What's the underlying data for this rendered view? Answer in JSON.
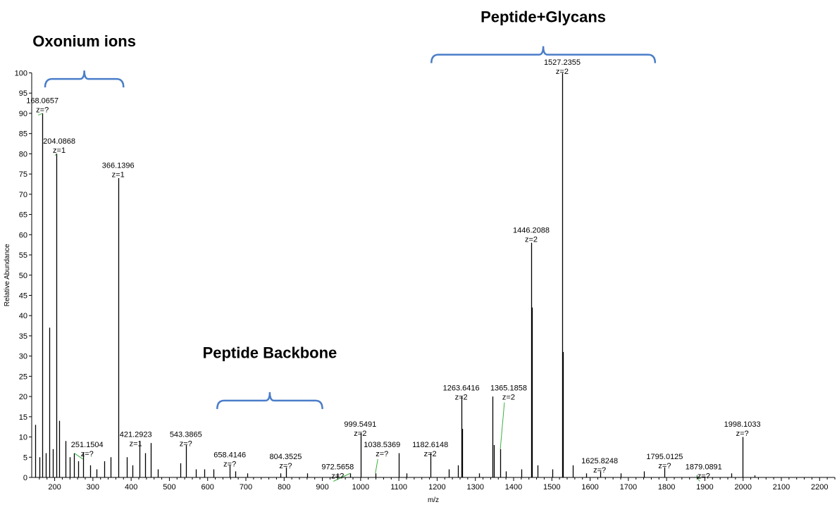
{
  "chart_data": {
    "type": "bar",
    "title": "",
    "xlabel": "m/z",
    "ylabel": "Relative Abundance",
    "xlim": [
      140,
      2240
    ],
    "ylim": [
      0,
      100
    ],
    "x_ticks": [
      200,
      300,
      400,
      500,
      600,
      700,
      800,
      900,
      1000,
      1100,
      1200,
      1300,
      1400,
      1500,
      1600,
      1700,
      1800,
      1900,
      2000,
      2100,
      2200
    ],
    "y_ticks": [
      0,
      5,
      10,
      15,
      20,
      25,
      30,
      35,
      40,
      45,
      50,
      55,
      60,
      65,
      70,
      75,
      80,
      85,
      90,
      95,
      100
    ],
    "peaks": [
      {
        "mz": 168.0657,
        "intensity": 90
      },
      {
        "mz": 186.0762,
        "intensity": 37
      },
      {
        "mz": 204.0868,
        "intensity": 80
      },
      {
        "mz": 366.1396,
        "intensity": 74
      },
      {
        "mz": 1446.2088,
        "intensity": 58
      },
      {
        "mz": 1527.2355,
        "intensity": 100
      },
      {
        "mz": 1263.6416,
        "intensity": 20
      },
      {
        "mz": 1365.1858,
        "intensity": 7
      },
      {
        "mz": 999.5491,
        "intensity": 11
      },
      {
        "mz": 1998.1033,
        "intensity": 10
      },
      {
        "mz": 1182.6148,
        "intensity": 6
      },
      {
        "mz": 543.3865,
        "intensity": 8
      },
      {
        "mz": 421.2923,
        "intensity": 9
      },
      {
        "mz": 1795.0125,
        "intensity": 2.5
      },
      {
        "mz": 1625.8248,
        "intensity": 1.5
      },
      {
        "mz": 658.4146,
        "intensity": 3
      },
      {
        "mz": 804.3525,
        "intensity": 2.5
      },
      {
        "mz": 1038.5369,
        "intensity": 1
      },
      {
        "mz": 972.5658,
        "intensity": 1
      },
      {
        "mz": 251.1504,
        "intensity": 6
      },
      {
        "mz": 1879.0891,
        "intensity": 0.5
      },
      {
        "mz": 1345.6,
        "intensity": 20
      },
      {
        "mz": 1448.2,
        "intensity": 42
      },
      {
        "mz": 1529.2,
        "intensity": 31
      },
      {
        "mz": 1265.6,
        "intensity": 12
      },
      {
        "mz": 1347.5,
        "intensity": 8
      },
      {
        "mz": 1100.5,
        "intensity": 6
      },
      {
        "mz": 150,
        "intensity": 13
      },
      {
        "mz": 160,
        "intensity": 5
      },
      {
        "mz": 176,
        "intensity": 6
      },
      {
        "mz": 195,
        "intensity": 7
      },
      {
        "mz": 212,
        "intensity": 14
      },
      {
        "mz": 228,
        "intensity": 9
      },
      {
        "mz": 240,
        "intensity": 5
      },
      {
        "mz": 262,
        "intensity": 4
      },
      {
        "mz": 274,
        "intensity": 6
      },
      {
        "mz": 292,
        "intensity": 3
      },
      {
        "mz": 310,
        "intensity": 2
      },
      {
        "mz": 330,
        "intensity": 4
      },
      {
        "mz": 347,
        "intensity": 5
      },
      {
        "mz": 388,
        "intensity": 5
      },
      {
        "mz": 404,
        "intensity": 3
      },
      {
        "mz": 436,
        "intensity": 6
      },
      {
        "mz": 452,
        "intensity": 8.5
      },
      {
        "mz": 470,
        "intensity": 2
      },
      {
        "mz": 528,
        "intensity": 3.5
      },
      {
        "mz": 569,
        "intensity": 2
      },
      {
        "mz": 592,
        "intensity": 2
      },
      {
        "mz": 615,
        "intensity": 2
      },
      {
        "mz": 672,
        "intensity": 1.5
      },
      {
        "mz": 703,
        "intensity": 1
      },
      {
        "mz": 790,
        "intensity": 1
      },
      {
        "mz": 860,
        "intensity": 1
      },
      {
        "mz": 940,
        "intensity": 1
      },
      {
        "mz": 1120,
        "intensity": 1
      },
      {
        "mz": 1230,
        "intensity": 2
      },
      {
        "mz": 1255,
        "intensity": 3
      },
      {
        "mz": 1310,
        "intensity": 1
      },
      {
        "mz": 1380,
        "intensity": 1.5
      },
      {
        "mz": 1420,
        "intensity": 2
      },
      {
        "mz": 1462,
        "intensity": 3
      },
      {
        "mz": 1502,
        "intensity": 2
      },
      {
        "mz": 1555,
        "intensity": 3
      },
      {
        "mz": 1590,
        "intensity": 1
      },
      {
        "mz": 1680,
        "intensity": 1
      },
      {
        "mz": 1740,
        "intensity": 1.5
      },
      {
        "mz": 1970,
        "intensity": 1
      },
      {
        "mz": 2030,
        "intensity": 0.5
      }
    ],
    "peak_labels": [
      {
        "mz": 168.0657,
        "value": "168.0657",
        "charge": "z=?",
        "peak_top": 90,
        "label_mz": 168,
        "label_y": 92.5,
        "leader": true
      },
      {
        "mz": 204.0868,
        "value": "204.0868",
        "charge": "z=1",
        "peak_top": 80,
        "label_mz": 212,
        "label_y": 82.5,
        "leader": true
      },
      {
        "mz": 366.1396,
        "value": "366.1396",
        "charge": "z=1",
        "peak_top": 74,
        "label_mz": 366,
        "label_y": 76.5,
        "leader": false
      },
      {
        "mz": 251.1504,
        "value": "251.1504",
        "charge": "z=?",
        "peak_top": 6,
        "label_mz": 285,
        "label_y": 7.5,
        "leader": true
      },
      {
        "mz": 421.2923,
        "value": "421.2923",
        "charge": "z=1",
        "peak_top": 9,
        "label_mz": 412,
        "label_y": 10,
        "leader": false
      },
      {
        "mz": 543.3865,
        "value": "543.3865",
        "charge": "z=?",
        "peak_top": 8,
        "label_mz": 543,
        "label_y": 10,
        "leader": false
      },
      {
        "mz": 658.4146,
        "value": "658.4146",
        "charge": "z=?",
        "peak_top": 3,
        "label_mz": 658,
        "label_y": 5,
        "leader": false
      },
      {
        "mz": 804.3525,
        "value": "804.3525",
        "charge": "z=?",
        "peak_top": 2.5,
        "label_mz": 804,
        "label_y": 4.5,
        "leader": false
      },
      {
        "mz": 972.5658,
        "value": "972.5658",
        "charge": "z=?",
        "peak_top": 1,
        "label_mz": 940,
        "label_y": 2,
        "leader": true
      },
      {
        "mz": 999.5491,
        "value": "999.5491",
        "charge": "z=2",
        "peak_top": 11,
        "label_mz": 999,
        "label_y": 12.5,
        "leader": false
      },
      {
        "mz": 1038.5369,
        "value": "1038.5369",
        "charge": "z=?",
        "peak_top": 1,
        "label_mz": 1056,
        "label_y": 7.5,
        "leader": true
      },
      {
        "mz": 1182.6148,
        "value": "1182.6148",
        "charge": "z=2",
        "peak_top": 6,
        "label_mz": 1182,
        "label_y": 7.5,
        "leader": false
      },
      {
        "mz": 1263.6416,
        "value": "1263.6416",
        "charge": "z=2",
        "peak_top": 20,
        "label_mz": 1263,
        "label_y": 21.5,
        "leader": false
      },
      {
        "mz": 1365.1858,
        "value": "1365.1858",
        "charge": "z=2",
        "peak_top": 7,
        "label_mz": 1387,
        "label_y": 21.5,
        "leader": true
      },
      {
        "mz": 1446.2088,
        "value": "1446.2088",
        "charge": "z=2",
        "peak_top": 58,
        "label_mz": 1446,
        "label_y": 60.5,
        "leader": false
      },
      {
        "mz": 1527.2355,
        "value": "1527.2355",
        "charge": "z=2",
        "peak_top": 100,
        "label_mz": 1527,
        "label_y": 102,
        "leader": false
      },
      {
        "mz": 1625.8248,
        "value": "1625.8248",
        "charge": "z=?",
        "peak_top": 1.5,
        "label_mz": 1625,
        "label_y": 3.5,
        "leader": false
      },
      {
        "mz": 1795.0125,
        "value": "1795.0125",
        "charge": "z=?",
        "peak_top": 2.5,
        "label_mz": 1795,
        "label_y": 4.5,
        "leader": false
      },
      {
        "mz": 1879.0891,
        "value": "1879.0891",
        "charge": "z=?",
        "peak_top": 0.5,
        "label_mz": 1897,
        "label_y": 2,
        "leader": true
      },
      {
        "mz": 1998.1033,
        "value": "1998.1033",
        "charge": "z=?",
        "peak_top": 10,
        "label_mz": 1998,
        "label_y": 12.5,
        "leader": false
      }
    ],
    "annotations": [
      {
        "label": "Oxonium ions",
        "from_mz": 175,
        "to_mz": 380,
        "level": 98.5,
        "text_level": 106.5
      },
      {
        "label": "Peptide Backbone",
        "from_mz": 625,
        "to_mz": 900,
        "level": 19,
        "text_level": 29.5
      },
      {
        "label": "Peptide+Glycans",
        "from_mz": 1185,
        "to_mz": 1770,
        "level": 104.5,
        "text_level": 112.5
      }
    ],
    "colors": {
      "peak": "#000000",
      "axis": "#000000",
      "leader": "#3cb043",
      "bracket": "#4a7dc9"
    }
  }
}
